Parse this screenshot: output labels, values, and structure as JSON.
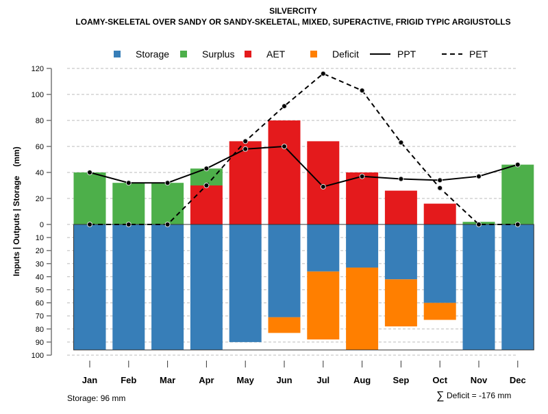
{
  "chart_data": {
    "type": "bar",
    "title": "SILVERCITY",
    "subtitle": "LOAMY-SKELETAL OVER SANDY OR SANDY-SKELETAL, MIXED, SUPERACTIVE, FRIGID TYPIC ARGIUSTOLLS",
    "ylabel": "Inputs | Outputs | Storage    (mm)",
    "categories": [
      "Jan",
      "Feb",
      "Mar",
      "Apr",
      "May",
      "Jun",
      "Jul",
      "Aug",
      "Sep",
      "Oct",
      "Nov",
      "Dec"
    ],
    "ylim_top": [
      0,
      120
    ],
    "yticks_top": [
      "0",
      "20",
      "40",
      "60",
      "80",
      "100",
      "120"
    ],
    "ylim_bottom": [
      0,
      100
    ],
    "yticks_bottom": [
      "10",
      "20",
      "30",
      "40",
      "50",
      "60",
      "70",
      "80",
      "90",
      "100"
    ],
    "grid": true,
    "legend_position": "top",
    "legend": [
      {
        "name": "Storage",
        "color": "#377EB8",
        "kind": "box"
      },
      {
        "name": "Surplus",
        "color": "#4DAF4A",
        "kind": "box"
      },
      {
        "name": "AET",
        "color": "#E41A1C",
        "kind": "box"
      },
      {
        "name": "Deficit",
        "color": "#FF7F00",
        "kind": "box"
      },
      {
        "name": "PPT",
        "color": "#000000",
        "kind": "line"
      },
      {
        "name": "PET",
        "color": "#000000",
        "kind": "dashed"
      }
    ],
    "series": [
      {
        "name": "AET",
        "values": [
          0,
          0,
          0,
          30,
          64,
          80,
          64,
          40,
          26,
          16,
          0,
          0
        ]
      },
      {
        "name": "Surplus",
        "values": [
          40,
          32,
          32,
          13,
          0,
          0,
          0,
          0,
          0,
          0,
          2,
          46
        ]
      },
      {
        "name": "Storage",
        "values": [
          96,
          96,
          96,
          96,
          90,
          71,
          36,
          33,
          42,
          60,
          96,
          96
        ]
      },
      {
        "name": "Deficit",
        "values": [
          0,
          0,
          0,
          0,
          0,
          12,
          52,
          63,
          36,
          13,
          0,
          0
        ]
      },
      {
        "name": "PPT",
        "values": [
          40,
          32,
          32,
          43,
          58,
          60,
          29,
          37,
          35,
          34,
          37,
          46
        ]
      },
      {
        "name": "PET",
        "values": [
          0,
          0,
          0,
          30,
          64,
          91,
          116,
          103,
          63,
          28,
          0,
          0
        ]
      }
    ],
    "storage_capacity": 96,
    "annotations": {
      "storage": "Storage: 96 mm",
      "deficit": "Deficit = -176 mm",
      "deficit_symbol": "∑"
    }
  }
}
